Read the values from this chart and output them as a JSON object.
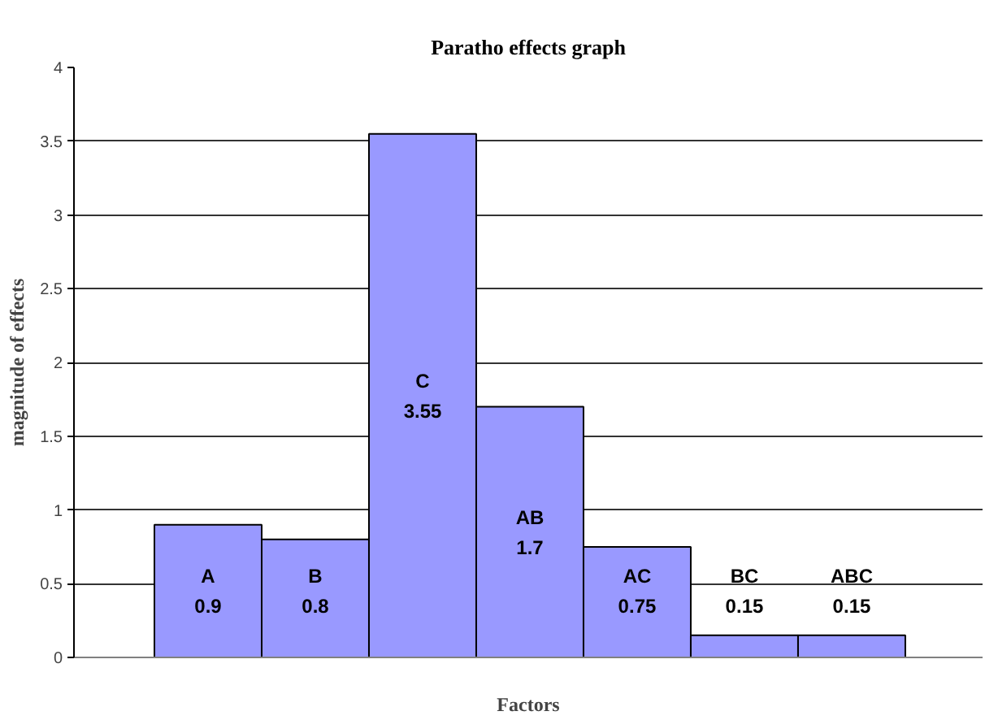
{
  "chart_data": {
    "type": "bar",
    "title": "Paratho effects graph",
    "xlabel": "Factors",
    "ylabel": "magnitude of effects",
    "categories": [
      "A",
      "B",
      "C",
      "AB",
      "AC",
      "BC",
      "ABC"
    ],
    "values": [
      0.9,
      0.8,
      3.55,
      1.7,
      0.75,
      0.15,
      0.15
    ],
    "color": "#9999ff",
    "ylim": [
      0,
      4
    ],
    "yticks": [
      0,
      0.5,
      1,
      1.5,
      2,
      2.5,
      3,
      3.5,
      4
    ],
    "grid": "y",
    "tick_labels": "y",
    "data_labels": true
  }
}
